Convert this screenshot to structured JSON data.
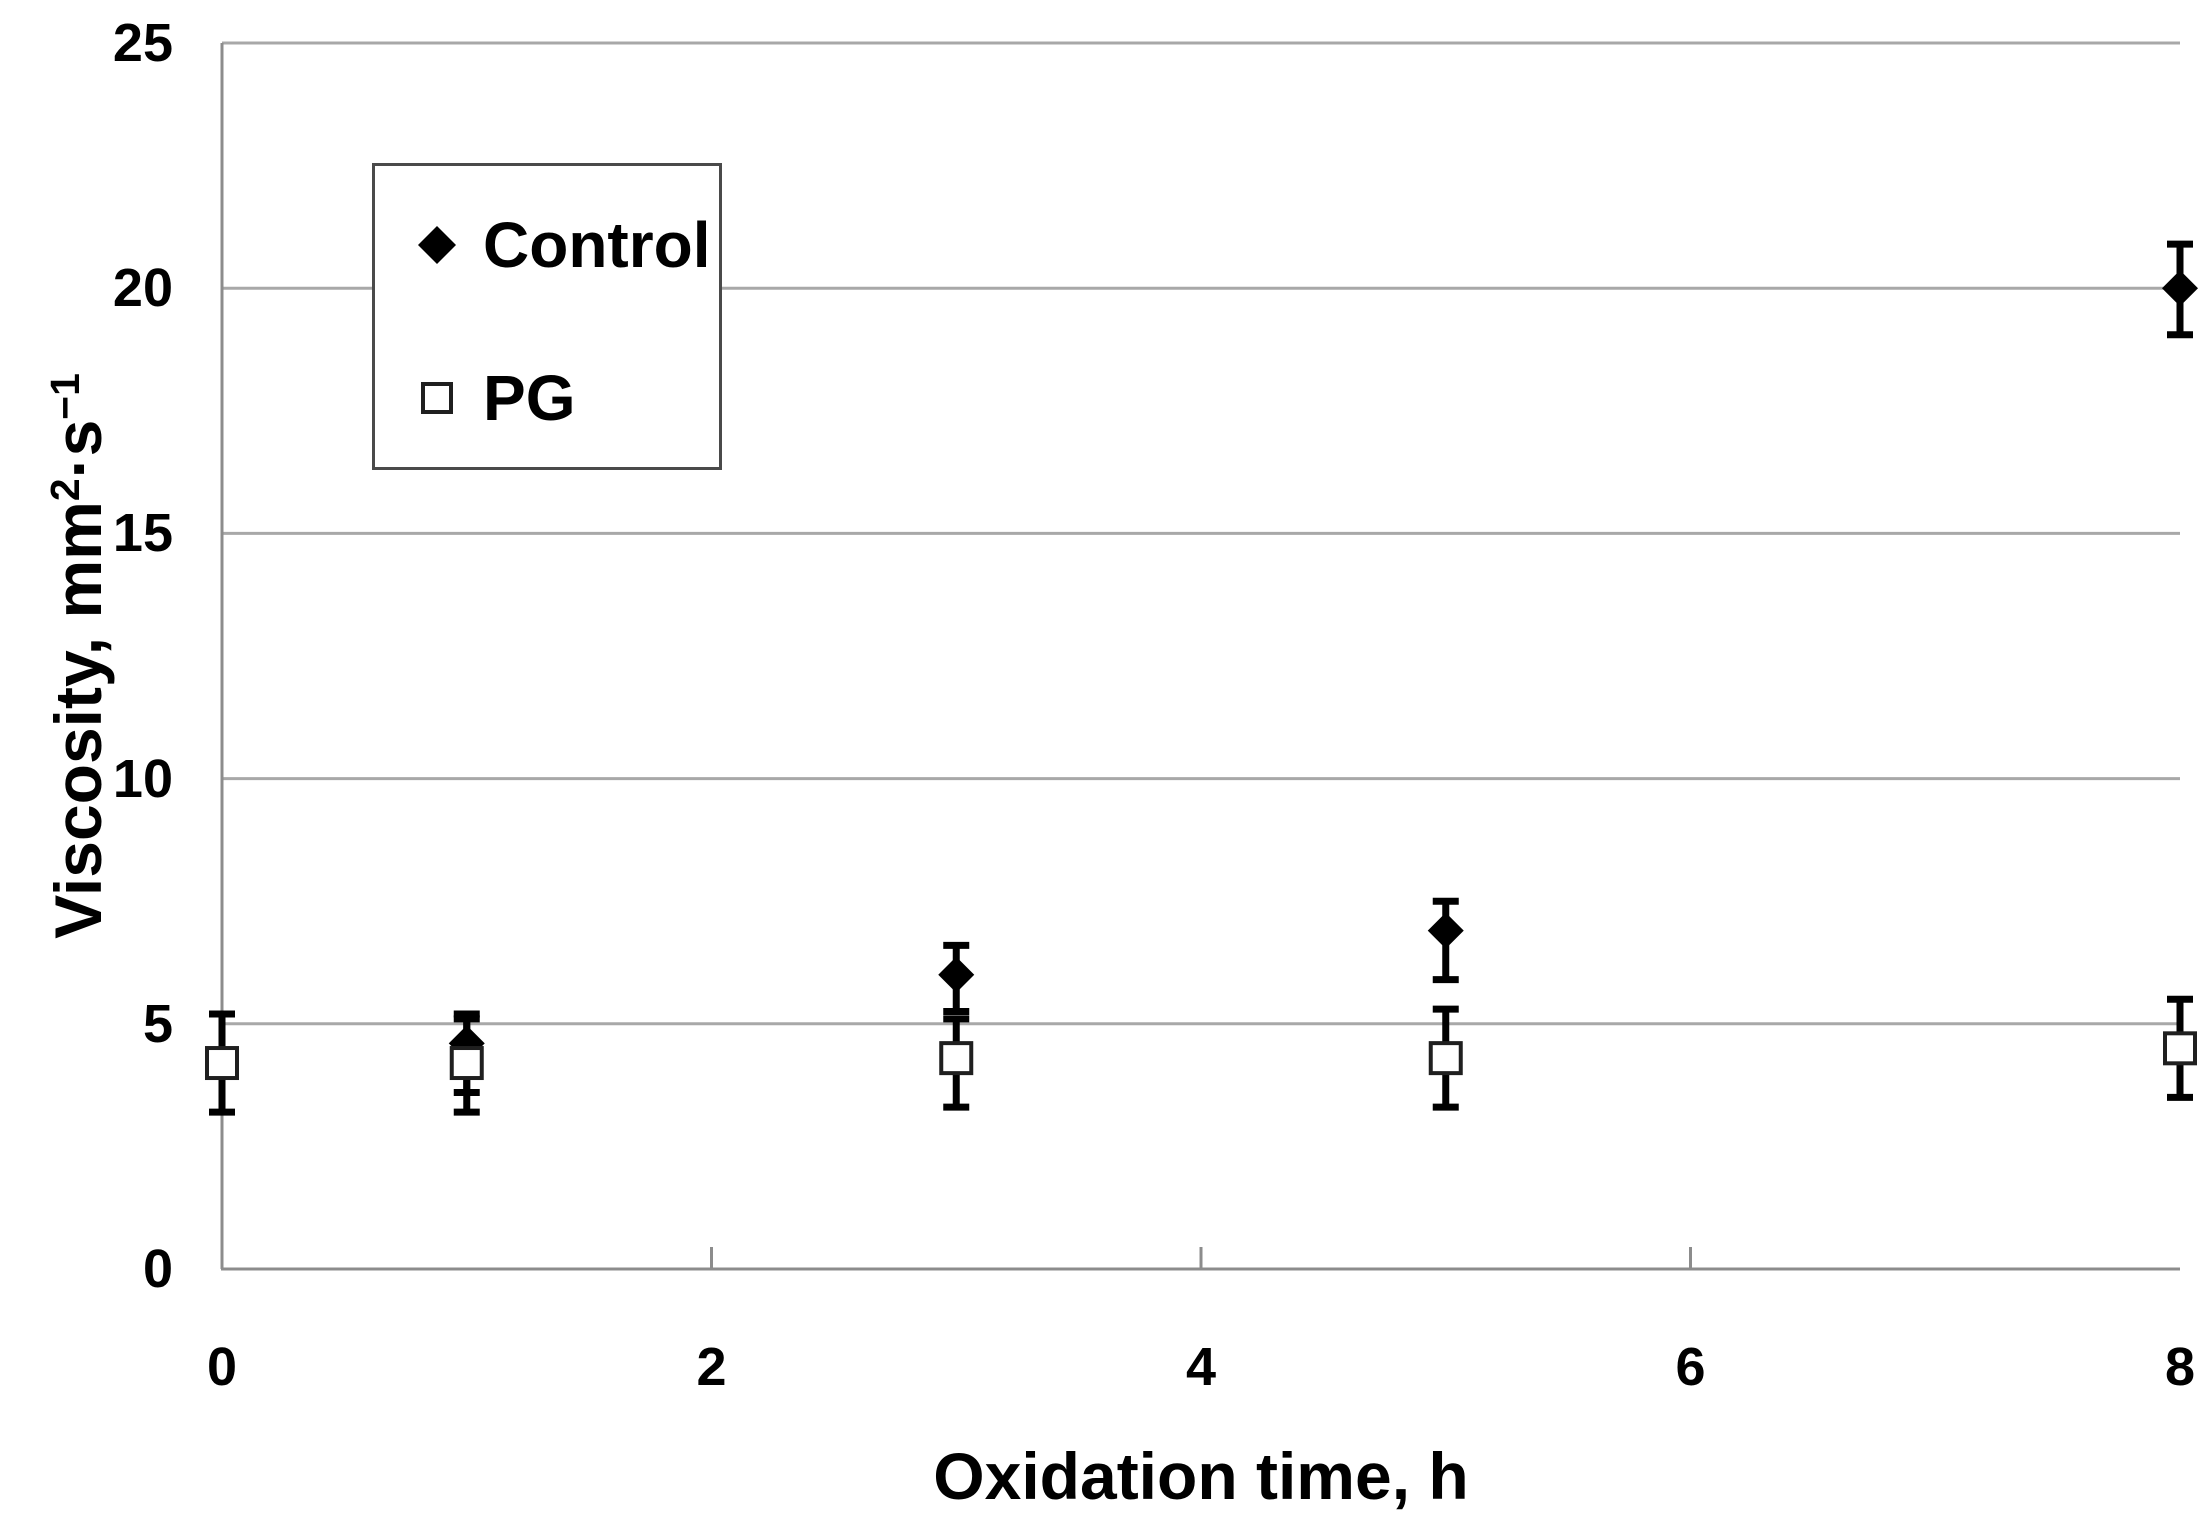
{
  "chart": {
    "x_title": "Oxidation time, h",
    "y_title": {
      "pre": "Viscosity, mm",
      "sup1": "2",
      "mid": "·s",
      "sup2": "−1"
    }
  },
  "chart_data": {
    "type": "scatter",
    "title": "",
    "xlabel": "Oxidation time, h",
    "ylabel": "Viscosity, mm2·s−1",
    "xlim": [
      0,
      8
    ],
    "ylim": [
      0,
      25
    ],
    "xticks": [
      0,
      2,
      4,
      6,
      8
    ],
    "yticks": [
      0,
      5,
      10,
      15,
      20,
      25
    ],
    "grid": "horizontal-only",
    "legend_position": "upper-left-inside",
    "error_bars": true,
    "series": [
      {
        "name": "Control",
        "marker": "filled-diamond",
        "color": "#000000",
        "points": [
          {
            "x": 1,
            "y": 4.6,
            "err_up": 0.6,
            "err_down": 1.0
          },
          {
            "x": 3,
            "y": 6.0,
            "err_up": 0.6,
            "err_down": 0.75
          },
          {
            "x": 5,
            "y": 6.9,
            "err_up": 0.6,
            "err_down": 1.0
          },
          {
            "x": 8,
            "y": 20.0,
            "err_up": 0.9,
            "err_down": 0.95
          }
        ]
      },
      {
        "name": "PG",
        "marker": "open-square",
        "color": "#000000",
        "fill": "#ffffff",
        "points": [
          {
            "x": 0,
            "y": 4.2,
            "err_up": 1.0,
            "err_down": 1.0
          },
          {
            "x": 1,
            "y": 4.2,
            "err_up": 0.9,
            "err_down": 1.0
          },
          {
            "x": 3,
            "y": 4.3,
            "err_up": 0.8,
            "err_down": 1.0
          },
          {
            "x": 5,
            "y": 4.3,
            "err_up": 1.0,
            "err_down": 1.0
          },
          {
            "x": 8,
            "y": 4.5,
            "err_up": 1.0,
            "err_down": 1.0
          }
        ]
      }
    ],
    "colors": {
      "gridline": "#a8a8a8",
      "axis": "#8c8c8c",
      "tick": "#8c8c8c",
      "error_bar": "#000000",
      "marker_stroke": "#1f1f1f",
      "text": "#000000",
      "background": "#ffffff"
    }
  }
}
